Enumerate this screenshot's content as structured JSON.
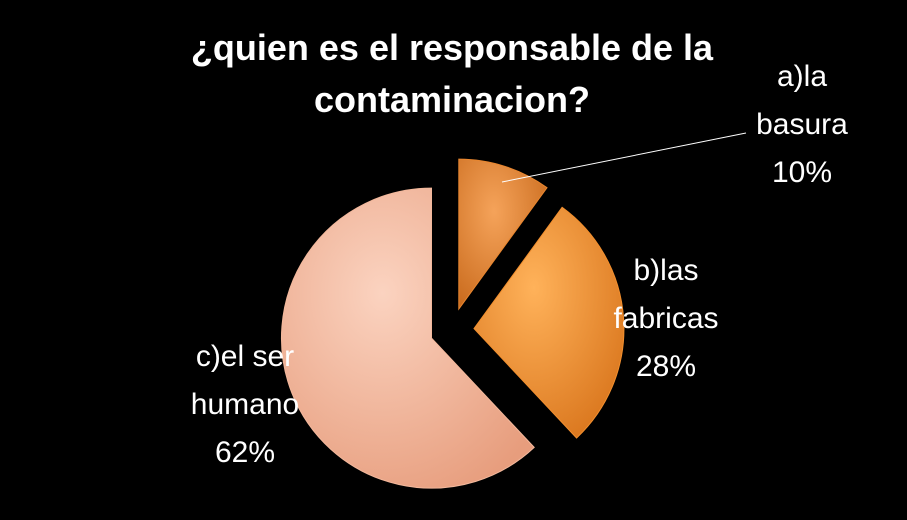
{
  "chart_data": {
    "type": "pie",
    "title_lines": [
      "¿quien es el responsable de la",
      "contaminacion?"
    ],
    "slices": [
      {
        "label_lines": [
          "a)la",
          "basura",
          "10%"
        ],
        "value": 10,
        "color": "#e8862f"
      },
      {
        "label_lines": [
          "b)las",
          "fabricas",
          "28%"
        ],
        "value": 28,
        "color": "#f28f2e"
      },
      {
        "label_lines": [
          "c)el ser",
          "humano",
          "62%"
        ],
        "value": 62,
        "color": "#f3b89c"
      }
    ],
    "exploded": true,
    "legend": "none"
  }
}
